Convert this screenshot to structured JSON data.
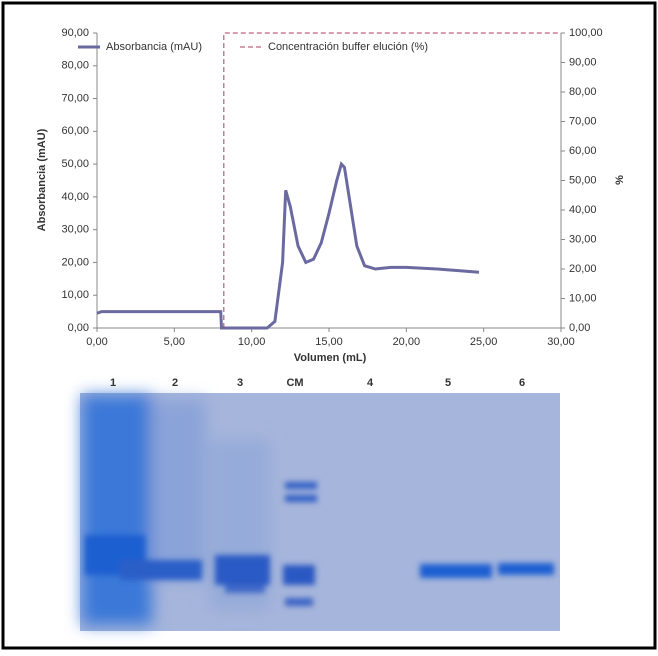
{
  "chart_data": {
    "type": "line",
    "xlabel": "Volumen (mL)",
    "ylabel": "Absorbancia (mAU)",
    "y2label": "%",
    "xlim": [
      0,
      30
    ],
    "ylim": [
      0,
      90
    ],
    "y2lim": [
      0,
      100
    ],
    "xticks": [
      {
        "value": 0,
        "label": "0,00"
      },
      {
        "value": 5,
        "label": "5,00"
      },
      {
        "value": 10,
        "label": "10,00"
      },
      {
        "value": 15,
        "label": "15,00"
      },
      {
        "value": 20,
        "label": "20,00"
      },
      {
        "value": 25,
        "label": "25,00"
      },
      {
        "value": 30,
        "label": "30,00"
      }
    ],
    "yticks": [
      {
        "value": 0,
        "label": "0,00"
      },
      {
        "value": 10,
        "label": "10,00"
      },
      {
        "value": 20,
        "label": "20,00"
      },
      {
        "value": 30,
        "label": "30,00"
      },
      {
        "value": 40,
        "label": "40,00"
      },
      {
        "value": 50,
        "label": "50,00"
      },
      {
        "value": 60,
        "label": "60,00"
      },
      {
        "value": 70,
        "label": "70,00"
      },
      {
        "value": 80,
        "label": "80,00"
      },
      {
        "value": 90,
        "label": "90,00"
      }
    ],
    "y2ticks": [
      {
        "value": 0,
        "label": "0,00"
      },
      {
        "value": 10,
        "label": "10,00"
      },
      {
        "value": 20,
        "label": "20,00"
      },
      {
        "value": 30,
        "label": "30,00"
      },
      {
        "value": 40,
        "label": "40,00"
      },
      {
        "value": 50,
        "label": "50,00"
      },
      {
        "value": 60,
        "label": "60,00"
      },
      {
        "value": 70,
        "label": "70,00"
      },
      {
        "value": 80,
        "label": "80,00"
      },
      {
        "value": 90,
        "label": "90,00"
      },
      {
        "value": 100,
        "label": "100,00"
      }
    ],
    "series": [
      {
        "name": "Absorbancia (mAU)",
        "color": "#6b6aa0",
        "x": [
          0,
          0.3,
          8,
          8.05,
          11,
          11.5,
          12,
          12.2,
          12.5,
          13,
          13.5,
          14,
          14.5,
          15,
          15.5,
          15.8,
          16,
          16.3,
          16.8,
          17.3,
          18,
          19,
          20,
          22,
          24.7
        ],
        "values": [
          4.5,
          5,
          5,
          0,
          0,
          2,
          20,
          42,
          37,
          25,
          20,
          21,
          26,
          35,
          45,
          50,
          49,
          40,
          25,
          19,
          18,
          18.5,
          18.5,
          18,
          17
        ]
      },
      {
        "name": "Concentración buffer elución (%)",
        "color": "#a8405c",
        "axis": "y2",
        "dashed": true,
        "x": [
          8.2,
          8.2,
          30
        ],
        "values": [
          0,
          100,
          100
        ]
      }
    ]
  },
  "gel": {
    "lanes": [
      "1",
      "2",
      "3",
      "CM",
      "4",
      "5",
      "6"
    ]
  }
}
